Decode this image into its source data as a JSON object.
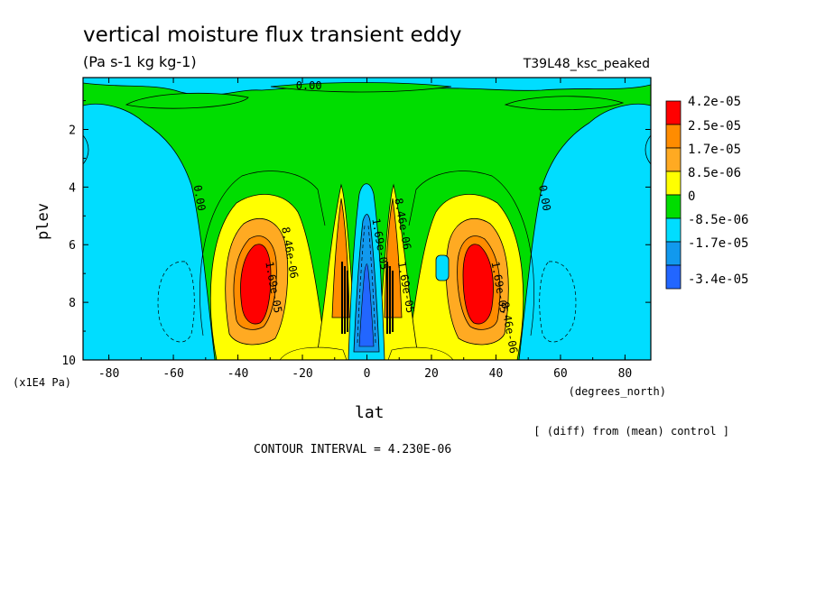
{
  "chart_data": {
    "type": "heatmap",
    "title": "vertical moisture flux transient eddy",
    "units": "(Pa s-1 kg kg-1)",
    "run_label": "T39L48_ksc_peaked",
    "xlabel": "lat",
    "xunits": "(degrees_north)",
    "ylabel": "plev",
    "yunits": "(x1E4 Pa)",
    "x_ticks": [
      -80,
      -60,
      -40,
      -20,
      0,
      20,
      40,
      60,
      80
    ],
    "y_ticks": [
      2,
      4,
      6,
      8,
      10
    ],
    "xlim": [
      -88,
      88
    ],
    "ylim": [
      0.2,
      10
    ],
    "y_inverted": true,
    "contour_interval_text": "CONTOUR INTERVAL = 4.230E-06",
    "diff_note": "[ (diff) from (mean) control ]",
    "legend": {
      "placement": "right",
      "levels": [
        {
          "label": "4.2e-05",
          "color": "#ff0000"
        },
        {
          "label": "2.5e-05",
          "color": "#ff8c00"
        },
        {
          "label": "1.7e-05",
          "color": "#ffaa22"
        },
        {
          "label": "8.5e-06",
          "color": "#ffff00"
        },
        {
          "label": "0",
          "color": "#00dd00"
        },
        {
          "label": "-8.5e-06",
          "color": "#00ddff"
        },
        {
          "label": "-1.7e-05",
          "color": "#1199ee"
        },
        {
          "label": "-3.4e-05",
          "color": "#2266ff"
        }
      ]
    },
    "contour_labels": [
      {
        "text": "0.00",
        "lat": -18,
        "plev": 0.6
      },
      {
        "text": "0.00",
        "lat": -53,
        "plev": 4.4
      },
      {
        "text": "0.00",
        "lat": 54,
        "plev": 4.4
      },
      {
        "text": "8.46e-06",
        "lat": -25,
        "plev": 6.3
      },
      {
        "text": "1.69e-05",
        "lat": -30,
        "plev": 7.5
      },
      {
        "text": "8.46e-06",
        "lat": 10,
        "plev": 5.3
      },
      {
        "text": "1.69e-05",
        "lat": 3,
        "plev": 6.0
      },
      {
        "text": "1.69e-05",
        "lat": 11,
        "plev": 7.5
      },
      {
        "text": "1.69e-05",
        "lat": 40,
        "plev": 7.5
      },
      {
        "text": "8.46e-06",
        "lat": 43,
        "plev": 8.9
      }
    ],
    "features": [
      {
        "kind": "positive-max",
        "lat": -35,
        "plev": 7.3,
        "value": 4.2e-05
      },
      {
        "kind": "positive-max",
        "lat": 35,
        "plev": 7.3,
        "value": 4.2e-05
      },
      {
        "kind": "positive-max",
        "lat": -7,
        "plev": 6.5,
        "value": 3.4e-05
      },
      {
        "kind": "positive-max",
        "lat": 7,
        "plev": 6.5,
        "value": 3.4e-05
      },
      {
        "kind": "negative-min",
        "lat": 0,
        "plev": 8.5,
        "value": -3.4e-05
      },
      {
        "kind": "negative-min",
        "lat": -59,
        "plev": 7.8,
        "value": -8.5e-06
      },
      {
        "kind": "negative-min",
        "lat": 59,
        "plev": 7.8,
        "value": -8.5e-06
      }
    ]
  }
}
